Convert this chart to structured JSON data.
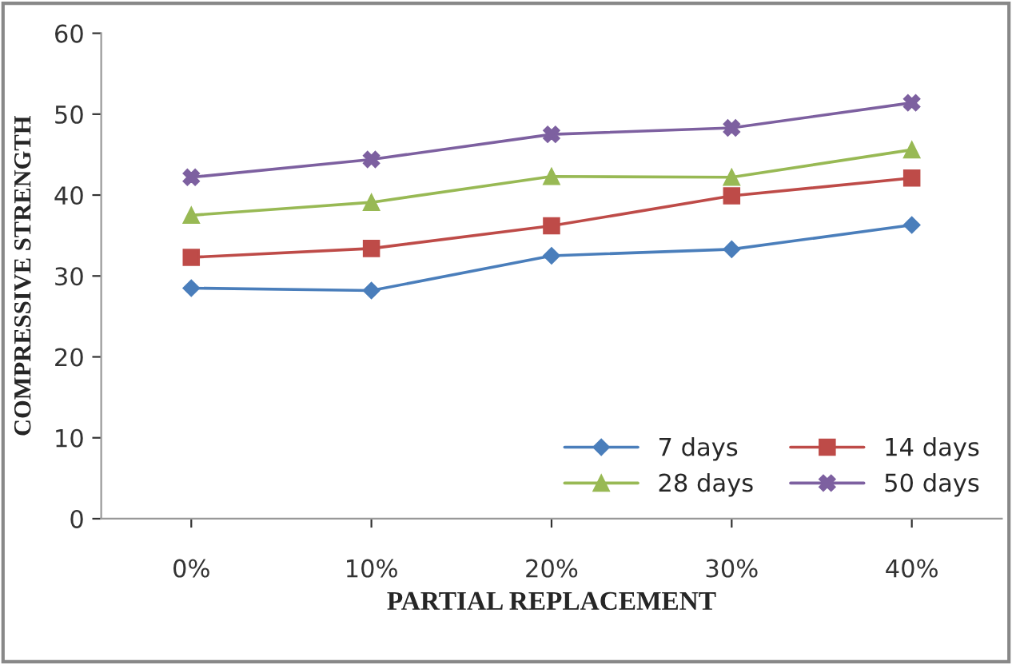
{
  "chart_data": {
    "type": "line",
    "xlabel": "PARTIAL REPLACEMENT",
    "ylabel": "COMPRESSIVE STRENGTH",
    "categories": [
      "0%",
      "10%",
      "20%",
      "30%",
      "40%"
    ],
    "ylim": [
      0,
      60
    ],
    "yticks": [
      0,
      10,
      20,
      30,
      40,
      50,
      60
    ],
    "grid": false,
    "legend": "bottom right",
    "series": [
      {
        "name": "7 days",
        "color": "#4a7ebb",
        "marker": "diamond",
        "values": [
          28.5,
          28.2,
          32.5,
          33.3,
          36.3
        ]
      },
      {
        "name": "14 days",
        "color": "#be4b48",
        "marker": "square",
        "values": [
          32.3,
          33.4,
          36.2,
          39.9,
          42.1
        ]
      },
      {
        "name": "28 days",
        "color": "#98b954",
        "marker": "triangle",
        "values": [
          37.5,
          39.1,
          42.3,
          42.2,
          45.6
        ]
      },
      {
        "name": "50 days",
        "color": "#7d60a0",
        "marker": "cross",
        "values": [
          42.2,
          44.4,
          47.5,
          48.3,
          51.4
        ]
      }
    ]
  }
}
